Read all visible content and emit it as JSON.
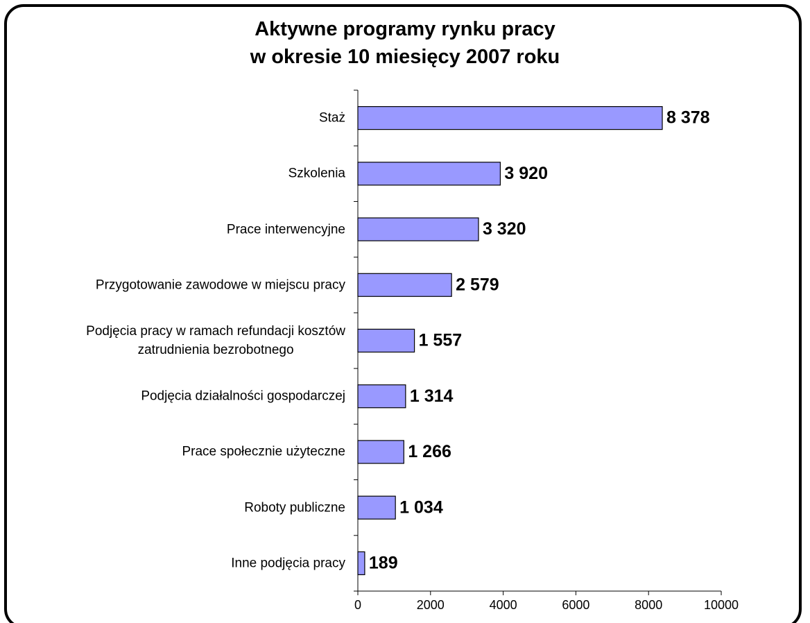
{
  "chart_data": {
    "type": "bar",
    "orientation": "horizontal",
    "title": "Aktywne programy rynku pracy\nw okresie 10 miesięcy 2007 roku",
    "categories": [
      "Staż",
      "Szkolenia",
      "Prace interwencyjne",
      "Przygotowanie zawodowe w miejscu pracy",
      "Podjęcia pracy w ramach refundacji kosztów\nzatrudnienia bezrobotnego",
      "Podjęcia działalności gospodarczej",
      "Prace społecznie użyteczne",
      "Roboty publiczne",
      "Inne podjęcia pracy"
    ],
    "values": [
      8378,
      3920,
      3320,
      2579,
      1557,
      1314,
      1266,
      1034,
      189
    ],
    "value_labels": [
      "8 378",
      "3 920",
      "3 320",
      "2 579",
      "1 557",
      "1 314",
      "1 266",
      "1 034",
      "189"
    ],
    "color": "#9999ff",
    "xlim": [
      0,
      10000
    ],
    "xticks": [
      0,
      2000,
      4000,
      6000,
      8000,
      10000
    ],
    "grid": false
  }
}
